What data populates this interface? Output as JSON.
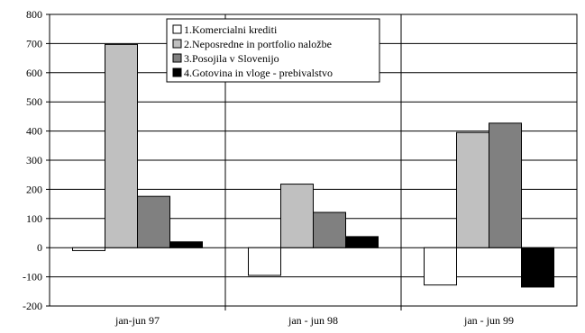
{
  "chart_data": {
    "type": "bar",
    "title": "",
    "xlabel": "",
    "ylabel": "",
    "ylim": [
      -200,
      800
    ],
    "ytick_step": 100,
    "grid": true,
    "legend_position": "top-center",
    "categories": [
      "jan-jun 97",
      "jan - jun 98",
      "jan - jun 99"
    ],
    "series": [
      {
        "name": "1.Komercialni krediti",
        "color": "#ffffff",
        "values": [
          -10,
          -95,
          -128
        ]
      },
      {
        "name": "2.Neposredne in portfolio naložbe",
        "color": "#c0c0c0",
        "values": [
          697,
          218,
          395
        ]
      },
      {
        "name": "3.Posojila v Slovenijo",
        "color": "#808080",
        "values": [
          176,
          121,
          427
        ]
      },
      {
        "name": "4.Gotovina in vloge - prebivalstvo",
        "color": "#000000",
        "values": [
          20,
          38,
          -135
        ]
      }
    ]
  }
}
